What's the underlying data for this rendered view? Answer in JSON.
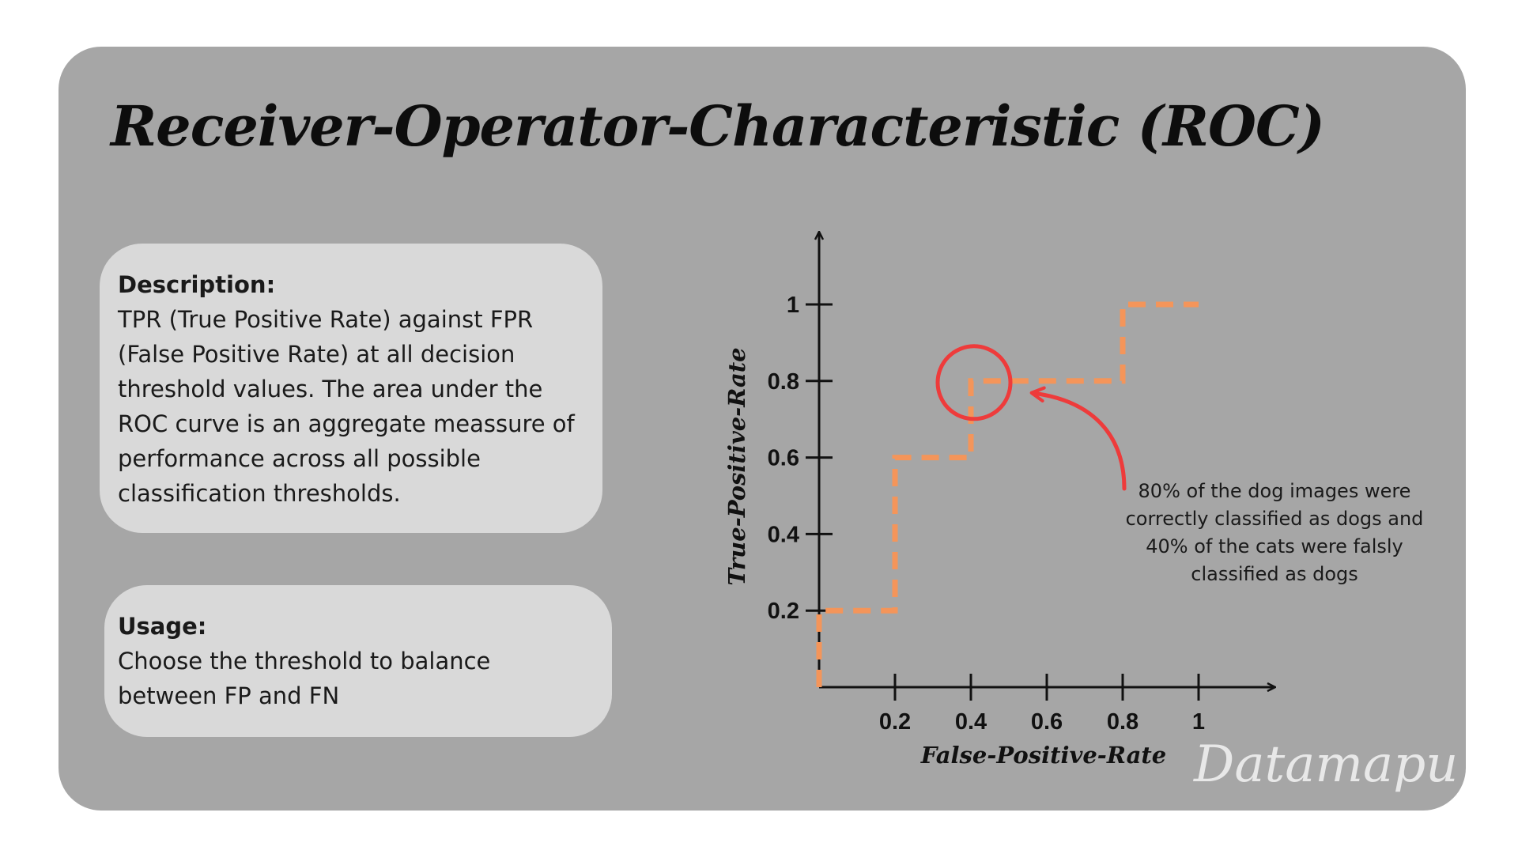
{
  "title": "Receiver-Operator-Characteristic (ROC)",
  "description": {
    "heading": "Description:",
    "text": "TPR (True Positive Rate) against FPR (False Positive Rate) at all decision threshold values. The area under the ROC curve is an aggregate meassure of performance across all possible classification thresholds."
  },
  "usage": {
    "heading": "Usage:",
    "text": "Choose the threshold to balance between FP and FN"
  },
  "annotation": "80% of the dog images were correctly classified as dogs and 40% of the cats were falsly classified as dogs",
  "watermark": "Datamapu",
  "colors": {
    "curve": "#f4955a",
    "highlight": "#ee3b3b",
    "panel": "#a6a6a6",
    "card": "#d9d9d9"
  },
  "chart_data": {
    "type": "line",
    "style": "dashed-step",
    "xlabel": "False-Positive-Rate",
    "ylabel": "True-Positive-Rate",
    "xlim": [
      0,
      1
    ],
    "ylim": [
      0,
      1
    ],
    "x_ticks": [
      0.2,
      0.4,
      0.6,
      0.8,
      1
    ],
    "x_tick_labels": [
      "0.2",
      "0.4",
      "0.6",
      "0.8",
      "1"
    ],
    "y_ticks": [
      0.2,
      0.4,
      0.6,
      0.8,
      1
    ],
    "y_tick_labels": [
      "0.2",
      "0.4",
      "0.6",
      "0.8",
      "1"
    ],
    "grid": false,
    "series": [
      {
        "points": [
          [
            0,
            0
          ],
          [
            0,
            0.2
          ],
          [
            0.2,
            0.2
          ],
          [
            0.2,
            0.6
          ],
          [
            0.4,
            0.6
          ],
          [
            0.4,
            0.8
          ],
          [
            0.8,
            0.8
          ],
          [
            0.8,
            1
          ],
          [
            1,
            1
          ]
        ]
      }
    ],
    "highlight_point": [
      0.4,
      0.8
    ]
  }
}
